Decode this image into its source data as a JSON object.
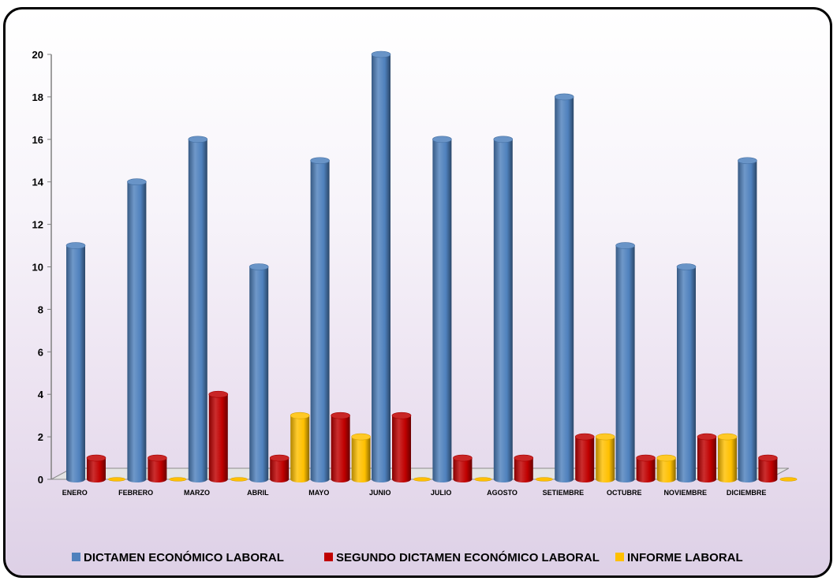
{
  "chart_data": {
    "type": "bar",
    "categories": [
      "ENERO",
      "FEBRERO",
      "MARZO",
      "ABRIL",
      "MAYO",
      "JUNIO",
      "JULIO",
      "AGOSTO",
      "SETIEMBRE",
      "OCTUBRE",
      "NOVIEMBRE",
      "DICIEMBRE"
    ],
    "series": [
      {
        "name": "DICTAMEN ECONÓMICO LABORAL",
        "color": "#4f81bd",
        "values": [
          11,
          14,
          16,
          10,
          15,
          20,
          16,
          16,
          18,
          11,
          10,
          15
        ]
      },
      {
        "name": "SEGUNDO DICTAMEN ECONÓMICO LABORAL",
        "color": "#c00000",
        "values": [
          1,
          1,
          4,
          1,
          3,
          3,
          1,
          1,
          2,
          1,
          2,
          1
        ]
      },
      {
        "name": "INFORME LABORAL",
        "color": "#ffc000",
        "values": [
          0,
          0,
          0,
          3,
          2,
          0,
          0,
          0,
          2,
          1,
          2,
          0
        ]
      }
    ],
    "yticks": [
      "0",
      "2",
      "4",
      "6",
      "8",
      "10",
      "12",
      "14",
      "16",
      "18",
      "20"
    ],
    "ylim": [
      0,
      20
    ],
    "bar_style": "3d-cylinder",
    "legend_position": "bottom",
    "grid": false
  }
}
